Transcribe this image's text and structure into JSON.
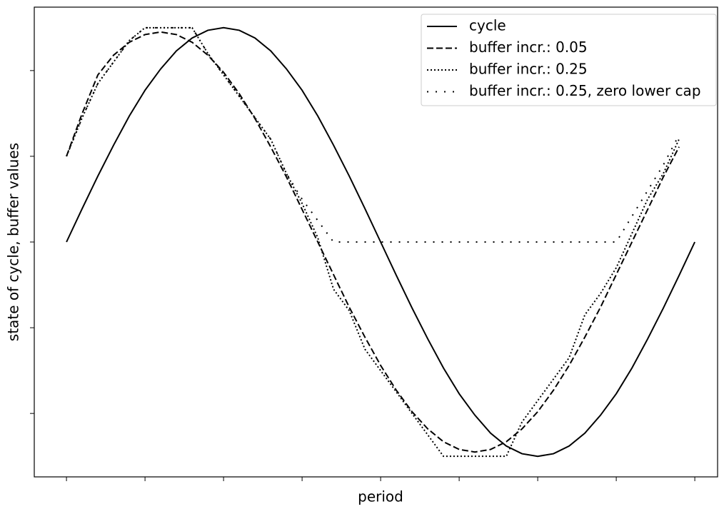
{
  "chart_data": {
    "type": "line",
    "xlabel": "period",
    "ylabel": "state of cycle, buffer values",
    "x": [
      0,
      1,
      2,
      3,
      4,
      5,
      6,
      7,
      8,
      9,
      10,
      11,
      12,
      13,
      14,
      15,
      16,
      17,
      18,
      19,
      20,
      21,
      22,
      23,
      24,
      25,
      26,
      27,
      28,
      29,
      30,
      31,
      32,
      33,
      34,
      35,
      36,
      37,
      38,
      39,
      40
    ],
    "series": [
      {
        "name": "cycle",
        "color": "#000000",
        "style": "solid",
        "values": [
          0,
          0.39,
          0.77,
          1.13,
          1.47,
          1.77,
          2.02,
          2.23,
          2.38,
          2.47,
          2.5,
          2.47,
          2.38,
          2.23,
          2.02,
          1.77,
          1.47,
          1.13,
          0.77,
          0.39,
          0,
          -0.39,
          -0.77,
          -1.13,
          -1.47,
          -1.77,
          -2.02,
          -2.23,
          -2.38,
          -2.47,
          -2.5,
          -2.47,
          -2.38,
          -2.23,
          -2.02,
          -1.77,
          -1.47,
          -1.13,
          -0.77,
          -0.39,
          0
        ]
      },
      {
        "name": "buffer incr.: 0.05",
        "color": "#000000",
        "style": "dashed",
        "values": [
          1.0,
          1.5,
          1.95,
          2.18,
          2.33,
          2.42,
          2.45,
          2.42,
          2.33,
          2.18,
          1.98,
          1.73,
          1.44,
          1.11,
          0.76,
          0.38,
          0,
          -0.38,
          -0.76,
          -1.11,
          -1.44,
          -1.73,
          -1.98,
          -2.18,
          -2.33,
          -2.42,
          -2.45,
          -2.42,
          -2.33,
          -2.18,
          -1.98,
          -1.73,
          -1.44,
          -1.11,
          -0.76,
          -0.38,
          0,
          0.38,
          0.76,
          1.11,
          null
        ]
      },
      {
        "name": "buffer incr.: 0.25",
        "color": "#000000",
        "style": "dotted",
        "values": [
          1.0,
          1.45,
          1.85,
          2.1,
          2.35,
          2.5,
          2.5,
          2.5,
          2.5,
          2.2,
          1.95,
          1.7,
          1.45,
          1.2,
          0.8,
          0.45,
          0.05,
          -0.55,
          -0.8,
          -1.25,
          -1.5,
          -1.75,
          -2.0,
          -2.25,
          -2.5,
          -2.5,
          -2.5,
          -2.5,
          -2.5,
          -2.1,
          -1.85,
          -1.6,
          -1.35,
          -0.85,
          -0.6,
          -0.3,
          0.1,
          0.5,
          0.8,
          1.2,
          null
        ]
      },
      {
        "name": "buffer incr.: 0.25, zero lower cap",
        "color": "#000000",
        "style": "loosely dotted",
        "values": [
          1.0,
          1.45,
          1.85,
          2.1,
          2.35,
          2.5,
          2.5,
          2.5,
          2.5,
          2.2,
          1.95,
          1.7,
          1.45,
          1.2,
          0.8,
          0.5,
          0.25,
          0,
          0,
          0,
          0,
          0,
          0,
          0,
          0,
          0,
          0,
          0,
          0,
          0,
          0,
          0,
          0,
          0,
          0,
          0,
          0.3,
          0.6,
          0.9,
          1.25,
          null
        ]
      }
    ],
    "xlim": [
      -2.05,
      41.45
    ],
    "ylim": [
      -2.74,
      2.74
    ],
    "xticks": [
      0,
      5,
      10,
      15,
      20,
      25,
      30,
      35,
      40
    ],
    "yticks": [
      -2,
      -1,
      0,
      1,
      2
    ],
    "legend": "upper right"
  }
}
